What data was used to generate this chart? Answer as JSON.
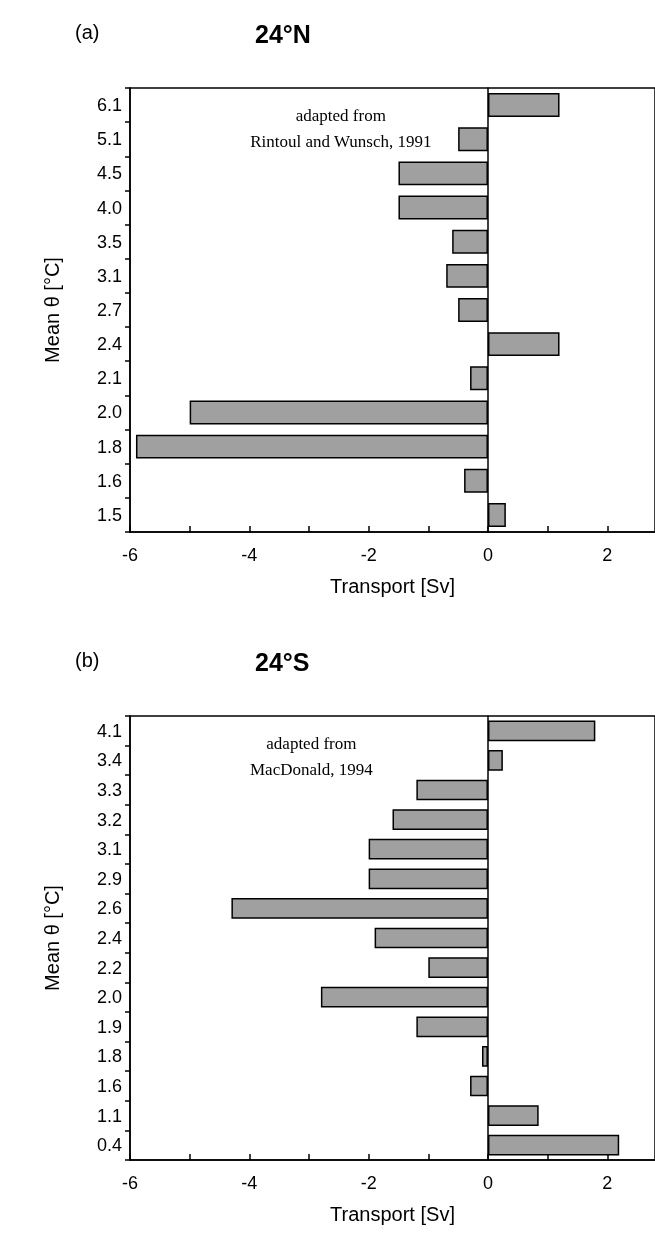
{
  "chart_data": [
    {
      "type": "bar",
      "orientation": "horizontal",
      "title": "24°N",
      "subtitle": "(a)",
      "xlabel": "Transport [Sv]",
      "ylabel": "Mean θ [°C]",
      "annotations": [
        "adapted from\nRintoul and Wunsch, 1991"
      ],
      "categories": [
        "6.1",
        "5.1",
        "4.5",
        "4.0",
        "3.5",
        "3.1",
        "2.7",
        "2.4",
        "2.1",
        "2.0",
        "1.8",
        "1.6",
        "1.5"
      ],
      "values": [
        1.2,
        -0.5,
        -1.5,
        -1.5,
        -0.6,
        -0.7,
        -0.5,
        1.2,
        -0.3,
        -5.0,
        -5.9,
        -0.4,
        0.3
      ],
      "color": "#a0a0a0",
      "xlim": [
        -6,
        2.8
      ],
      "xticks": [
        -6,
        {
          "value": -5,
          "label": null
        },
        -4,
        {
          "value": -3,
          "label": null
        },
        -2,
        {
          "value": -1,
          "label": null
        },
        0,
        {
          "value": 1,
          "label": null
        },
        2
      ]
    },
    {
      "type": "bar",
      "orientation": "horizontal",
      "title": "24°S",
      "subtitle": "(b)",
      "xlabel": "Transport [Sv]",
      "ylabel": "Mean θ [°C]",
      "annotations": [
        "adapted from\nMacDonald, 1994"
      ],
      "categories": [
        "4.1",
        "3.4",
        "3.3",
        "3.2",
        "3.1",
        "2.9",
        "2.6",
        "2.4",
        "2.2",
        "2.0",
        "1.9",
        "1.8",
        "1.6",
        "1.1",
        "0.4"
      ],
      "values": [
        1.8,
        0.25,
        -1.2,
        -1.6,
        -2.0,
        -2.0,
        -4.3,
        -1.9,
        -1.0,
        -2.8,
        -1.2,
        -0.1,
        -0.3,
        0.85,
        2.2
      ],
      "color": "#a0a0a0",
      "xlim": [
        -6,
        2.8
      ],
      "xticks": [
        -6,
        {
          "value": -5,
          "label": null
        },
        -4,
        {
          "value": -3,
          "label": null
        },
        -2,
        {
          "value": -1,
          "label": null
        },
        0,
        {
          "value": 1,
          "label": null
        },
        2
      ]
    }
  ]
}
